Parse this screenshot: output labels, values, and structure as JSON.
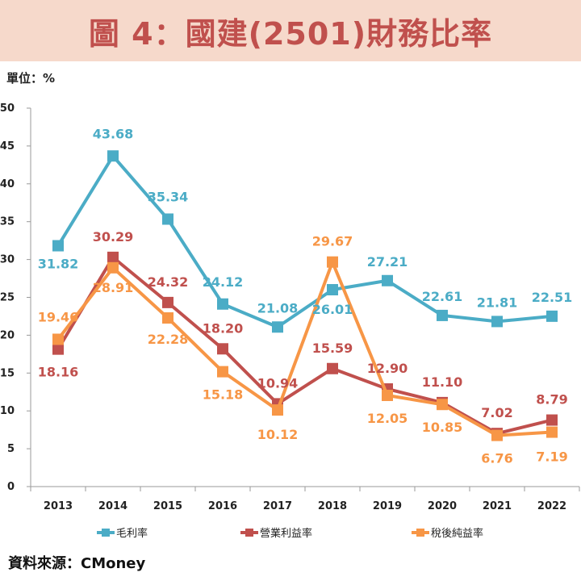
{
  "title": "圖 4：國建(2501)財務比率",
  "unit": "單位：%",
  "source": "資料來源：CMoney",
  "colors": {
    "title_bg": "#f6d9cb",
    "title_text": "#c0504d"
  },
  "chart_data": {
    "type": "line",
    "title": "圖 4：國建(2501)財務比率",
    "categories": [
      "2013",
      "2014",
      "2015",
      "2016",
      "2017",
      "2018",
      "2019",
      "2020",
      "2021",
      "2022"
    ],
    "ylim": [
      0,
      50
    ],
    "yticks": [
      0,
      5,
      10,
      15,
      20,
      25,
      30,
      35,
      40,
      45,
      50
    ],
    "xlabel": "",
    "ylabel": "單位：%",
    "legend_position": "bottom",
    "series": [
      {
        "name": "毛利率",
        "color": "#4bacc6",
        "values": [
          31.82,
          43.68,
          35.34,
          24.12,
          21.08,
          26.01,
          27.21,
          22.61,
          21.81,
          22.51
        ],
        "labels": [
          "31.82",
          "43.68",
          "35.34",
          "24.12",
          "21.08",
          "26.01",
          "27.21",
          "22.61",
          "21.81",
          "22.51"
        ]
      },
      {
        "name": "營業利益率",
        "color": "#c0504d",
        "values": [
          18.16,
          30.29,
          24.32,
          18.2,
          10.94,
          15.59,
          12.9,
          11.1,
          7.02,
          8.79
        ],
        "labels": [
          "18.16",
          "30.29",
          "24.32",
          "18.20",
          "10.94",
          "15.59",
          "12.90",
          "11.10",
          "7.02",
          "8.79"
        ]
      },
      {
        "name": "稅後純益率",
        "color": "#f79646",
        "values": [
          19.46,
          28.91,
          22.28,
          15.18,
          10.12,
          29.67,
          12.05,
          10.85,
          6.76,
          7.19
        ],
        "labels": [
          "19.46",
          "28.91",
          "22.28",
          "15.18",
          "10.12",
          "29.67",
          "12.05",
          "10.85",
          "6.76",
          "7.19"
        ]
      }
    ]
  }
}
